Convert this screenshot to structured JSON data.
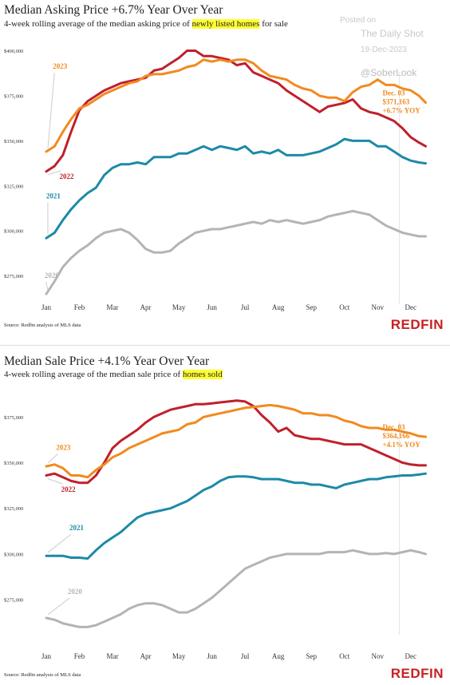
{
  "watermark": {
    "posted_on": "Posted on",
    "publisher": "The Daily Shot",
    "date": "19-Dec-2023",
    "handle": "@SoberLook"
  },
  "colors": {
    "y2023": "#f28a1e",
    "y2022": "#c0202b",
    "y2021": "#1c8aa6",
    "y2020": "#b4b4b4",
    "brand": "#c82021",
    "highlight": "#ffff33"
  },
  "chart_data": [
    {
      "type": "line",
      "title": "Median Asking Price +6.7% Year Over Year",
      "subtitle_pre": "4-week rolling average of the median asking price of ",
      "subtitle_hl": "newly listed homes",
      "subtitle_post": " for sale",
      "source": "Source: Redfin analysis of MLS data",
      "brand": "REDFIN",
      "xlabel": "",
      "ylabel": "",
      "x_ticks": [
        "Jan",
        "Feb",
        "Mar",
        "Apr",
        "May",
        "Jun",
        "Jul",
        "Aug",
        "Sep",
        "Oct",
        "Nov",
        "Dec"
      ],
      "y_ticks": [
        "$275,000",
        "$300,000",
        "$325,000",
        "$350,000",
        "$375,000",
        "$400,000"
      ],
      "ylim": [
        262000,
        406000
      ],
      "x_range": [
        0,
        11.8
      ],
      "grid": false,
      "annotation": {
        "lines": [
          "Dec. 03",
          "$371,163",
          "+6.7% YOY"
        ],
        "x": 10.15
      },
      "series": [
        {
          "name": "2023",
          "color": "2023",
          "x": [
            0,
            0.25,
            0.5,
            0.75,
            1,
            1.25,
            1.5,
            1.75,
            2,
            2.25,
            2.5,
            2.75,
            3,
            3.25,
            3.5,
            3.75,
            4,
            4.25,
            4.5,
            4.75,
            5,
            5.25,
            5.5,
            5.75,
            6,
            6.25,
            6.5,
            6.75,
            7,
            7.25,
            7.5,
            7.75,
            8,
            8.25,
            8.5,
            8.75,
            9,
            9.25,
            9.5,
            9.75,
            10,
            10.25,
            10.5,
            10.75,
            11,
            11.25,
            11.45
          ],
          "y": [
            344000,
            347000,
            355000,
            362000,
            368000,
            370000,
            373000,
            376000,
            378000,
            380000,
            382000,
            383000,
            386000,
            387000,
            387000,
            388000,
            389000,
            391000,
            392000,
            395000,
            394000,
            395000,
            394000,
            395000,
            395000,
            393000,
            389000,
            386000,
            385000,
            384000,
            381000,
            379000,
            378000,
            375000,
            374000,
            374000,
            372000,
            377000,
            380000,
            381000,
            384000,
            381000,
            381000,
            379000,
            378000,
            375000,
            371163
          ]
        },
        {
          "name": "2022",
          "color": "2022",
          "x": [
            0,
            0.25,
            0.5,
            0.75,
            1,
            1.25,
            1.5,
            1.75,
            2,
            2.25,
            2.5,
            2.75,
            3,
            3.25,
            3.5,
            3.75,
            4,
            4.25,
            4.5,
            4.75,
            5,
            5.25,
            5.5,
            5.75,
            6,
            6.25,
            6.5,
            6.75,
            7,
            7.25,
            7.5,
            7.75,
            8,
            8.25,
            8.5,
            8.75,
            9,
            9.25,
            9.5,
            9.75,
            10,
            10.25,
            10.5,
            10.75,
            11,
            11.25,
            11.45
          ],
          "y": [
            333000,
            336000,
            342000,
            355000,
            367000,
            372000,
            375000,
            378000,
            380000,
            382000,
            383000,
            384000,
            385000,
            389000,
            390000,
            393000,
            396000,
            400000,
            400000,
            397000,
            397000,
            396000,
            395000,
            392000,
            393000,
            388000,
            386000,
            384000,
            382000,
            378000,
            375000,
            372000,
            369000,
            366000,
            369000,
            370000,
            371000,
            373000,
            368000,
            366000,
            365000,
            363000,
            361000,
            357000,
            352000,
            349000,
            347000
          ]
        },
        {
          "name": "2021",
          "color": "2021",
          "x": [
            0,
            0.25,
            0.5,
            0.75,
            1,
            1.25,
            1.5,
            1.75,
            2,
            2.25,
            2.5,
            2.75,
            3,
            3.25,
            3.5,
            3.75,
            4,
            4.25,
            4.5,
            4.75,
            5,
            5.25,
            5.5,
            5.75,
            6,
            6.25,
            6.5,
            6.75,
            7,
            7.25,
            7.5,
            7.75,
            8,
            8.25,
            8.5,
            8.75,
            9,
            9.25,
            9.5,
            9.75,
            10,
            10.25,
            10.5,
            10.75,
            11,
            11.25,
            11.45
          ],
          "y": [
            296000,
            299000,
            306000,
            312000,
            317000,
            321000,
            324000,
            331000,
            335000,
            337000,
            337000,
            338000,
            337000,
            341000,
            341000,
            341000,
            343000,
            343000,
            345000,
            347000,
            345000,
            347000,
            346000,
            345000,
            347000,
            343000,
            344000,
            343000,
            345000,
            342000,
            342000,
            342000,
            343000,
            344000,
            346000,
            348000,
            351000,
            350000,
            350000,
            350000,
            347000,
            347000,
            344000,
            341000,
            339000,
            338000,
            337500
          ]
        },
        {
          "name": "2020",
          "color": "2020",
          "x": [
            0,
            0.25,
            0.5,
            0.75,
            1,
            1.25,
            1.5,
            1.75,
            2,
            2.25,
            2.5,
            2.75,
            3,
            3.25,
            3.5,
            3.75,
            4,
            4.25,
            4.5,
            4.75,
            5,
            5.25,
            5.5,
            5.75,
            6,
            6.25,
            6.5,
            6.75,
            7,
            7.25,
            7.5,
            7.75,
            8,
            8.25,
            8.5,
            8.75,
            9,
            9.25,
            9.5,
            9.75,
            10,
            10.25,
            10.5,
            10.75,
            11,
            11.25,
            11.45
          ],
          "y": [
            265000,
            272000,
            280000,
            285000,
            289000,
            292000,
            296000,
            299000,
            300000,
            301000,
            299000,
            295000,
            290000,
            288000,
            288000,
            289000,
            293000,
            296000,
            299000,
            300000,
            301000,
            301000,
            302000,
            303000,
            304000,
            305000,
            304000,
            306000,
            305000,
            306000,
            305000,
            304000,
            305000,
            306000,
            308000,
            309000,
            310000,
            311000,
            310000,
            309000,
            306000,
            303000,
            301000,
            299000,
            298000,
            297000,
            297000
          ]
        }
      ],
      "series_labels": [
        {
          "name": "2023",
          "x": 0.15,
          "y": 390000
        },
        {
          "name": "2022",
          "x": 0.35,
          "y": 329000
        },
        {
          "name": "2021",
          "x": -0.05,
          "y": 318000
        },
        {
          "name": "2020",
          "x": -0.1,
          "y": 274000
        }
      ]
    },
    {
      "type": "line",
      "title": "Median Sale Price +4.1% Year Over Year",
      "subtitle_pre": "4-week rolling average of the median sale price of ",
      "subtitle_hl": "homes sold",
      "subtitle_post": "",
      "source": "Source: Redfin analysis of MLS data",
      "brand": "REDFIN",
      "xlabel": "",
      "ylabel": "",
      "x_ticks": [
        "Jan",
        "Feb",
        "Mar",
        "Apr",
        "May",
        "Jun",
        "Jul",
        "Aug",
        "Sep",
        "Oct",
        "Nov",
        "Dec"
      ],
      "y_ticks": [
        "$275,000",
        "$300,000",
        "$325,000",
        "$350,000",
        "$375,000"
      ],
      "ylim": [
        258000,
        390000
      ],
      "x_range": [
        0,
        11.8
      ],
      "grid": false,
      "annotation": {
        "lines": [
          "Dec. 03",
          "$364,166",
          "+4.1% YOY"
        ],
        "x": 10.15
      },
      "series": [
        {
          "name": "2023",
          "color": "2023",
          "x": [
            0,
            0.25,
            0.5,
            0.75,
            1,
            1.25,
            1.5,
            1.75,
            2,
            2.25,
            2.5,
            2.75,
            3,
            3.25,
            3.5,
            3.75,
            4,
            4.25,
            4.5,
            4.75,
            5,
            5.25,
            5.5,
            5.75,
            6,
            6.25,
            6.5,
            6.75,
            7,
            7.25,
            7.5,
            7.75,
            8,
            8.25,
            8.5,
            8.75,
            9,
            9.25,
            9.5,
            9.75,
            10,
            10.25,
            10.5,
            10.75,
            11,
            11.25,
            11.45
          ],
          "y": [
            348000,
            349000,
            347000,
            343000,
            343000,
            342000,
            346000,
            349000,
            353000,
            355000,
            358000,
            360000,
            362000,
            364000,
            366000,
            367000,
            368000,
            371000,
            372000,
            375000,
            376000,
            377000,
            378000,
            379000,
            380000,
            380500,
            381000,
            381500,
            381000,
            380000,
            379000,
            377000,
            377000,
            376000,
            376000,
            375000,
            373000,
            372000,
            370000,
            369000,
            369000,
            368000,
            368000,
            367000,
            366000,
            364500,
            364166
          ]
        },
        {
          "name": "2022",
          "color": "2022",
          "x": [
            0,
            0.25,
            0.5,
            0.75,
            1,
            1.25,
            1.5,
            1.75,
            2,
            2.25,
            2.5,
            2.75,
            3,
            3.25,
            3.5,
            3.75,
            4,
            4.25,
            4.5,
            4.75,
            5,
            5.25,
            5.5,
            5.75,
            6,
            6.25,
            6.5,
            6.75,
            7,
            7.25,
            7.5,
            7.75,
            8,
            8.25,
            8.5,
            8.75,
            9,
            9.25,
            9.5,
            9.75,
            10,
            10.25,
            10.5,
            10.75,
            11,
            11.25,
            11.45
          ],
          "y": [
            343000,
            344000,
            342000,
            340000,
            339000,
            339000,
            343000,
            350000,
            358000,
            362000,
            365000,
            368000,
            372000,
            375000,
            377000,
            379000,
            380000,
            381000,
            382000,
            382000,
            382500,
            383000,
            383500,
            384000,
            383500,
            381000,
            376000,
            372000,
            367000,
            369000,
            365000,
            364000,
            363000,
            363000,
            362000,
            361000,
            360000,
            360000,
            360000,
            358000,
            356000,
            354000,
            352000,
            350000,
            349000,
            348500,
            348500
          ]
        },
        {
          "name": "2021",
          "color": "2021",
          "x": [
            0,
            0.25,
            0.5,
            0.75,
            1,
            1.25,
            1.5,
            1.75,
            2,
            2.25,
            2.5,
            2.75,
            3,
            3.25,
            3.5,
            3.75,
            4,
            4.25,
            4.5,
            4.75,
            5,
            5.25,
            5.5,
            5.75,
            6,
            6.25,
            6.5,
            6.75,
            7,
            7.25,
            7.5,
            7.75,
            8,
            8.25,
            8.5,
            8.75,
            9,
            9.25,
            9.5,
            9.75,
            10,
            10.25,
            10.5,
            10.75,
            11,
            11.25,
            11.45
          ],
          "y": [
            299000,
            299000,
            299000,
            298000,
            298000,
            297500,
            302000,
            306000,
            309000,
            312000,
            316000,
            320000,
            322000,
            323000,
            324000,
            325000,
            327000,
            329000,
            332000,
            335000,
            337000,
            340000,
            342000,
            342500,
            342500,
            342000,
            341000,
            341000,
            341000,
            340000,
            339000,
            339000,
            338000,
            338000,
            337000,
            336000,
            338000,
            339000,
            340000,
            341000,
            341000,
            342000,
            342500,
            343000,
            343000,
            343500,
            344000
          ]
        },
        {
          "name": "2020",
          "color": "2020",
          "x": [
            0,
            0.25,
            0.5,
            0.75,
            1,
            1.25,
            1.5,
            1.75,
            2,
            2.25,
            2.5,
            2.75,
            3,
            3.25,
            3.5,
            3.75,
            4,
            4.25,
            4.5,
            4.75,
            5,
            5.25,
            5.5,
            5.75,
            6,
            6.25,
            6.5,
            6.75,
            7,
            7.25,
            7.5,
            7.75,
            8,
            8.25,
            8.5,
            8.75,
            9,
            9.25,
            9.5,
            9.75,
            10,
            10.25,
            10.5,
            10.75,
            11,
            11.25,
            11.45
          ],
          "y": [
            265000,
            264000,
            262000,
            261000,
            260000,
            260000,
            261000,
            263000,
            265000,
            267000,
            270000,
            272000,
            273000,
            273000,
            272000,
            270000,
            268000,
            268000,
            270000,
            273000,
            276000,
            280000,
            284000,
            288000,
            292000,
            294000,
            296000,
            298000,
            299000,
            300000,
            300000,
            300000,
            300000,
            300000,
            301000,
            301000,
            301000,
            302000,
            301000,
            300000,
            300000,
            300500,
            300000,
            301000,
            302000,
            301000,
            300000
          ]
        }
      ],
      "series_labels": [
        {
          "name": "2023",
          "x": 0.25,
          "y": 357000
        },
        {
          "name": "2022",
          "x": 0.4,
          "y": 334000
        },
        {
          "name": "2021",
          "x": 0.65,
          "y": 313000
        },
        {
          "name": "2020",
          "x": 0.6,
          "y": 278000
        }
      ]
    }
  ]
}
